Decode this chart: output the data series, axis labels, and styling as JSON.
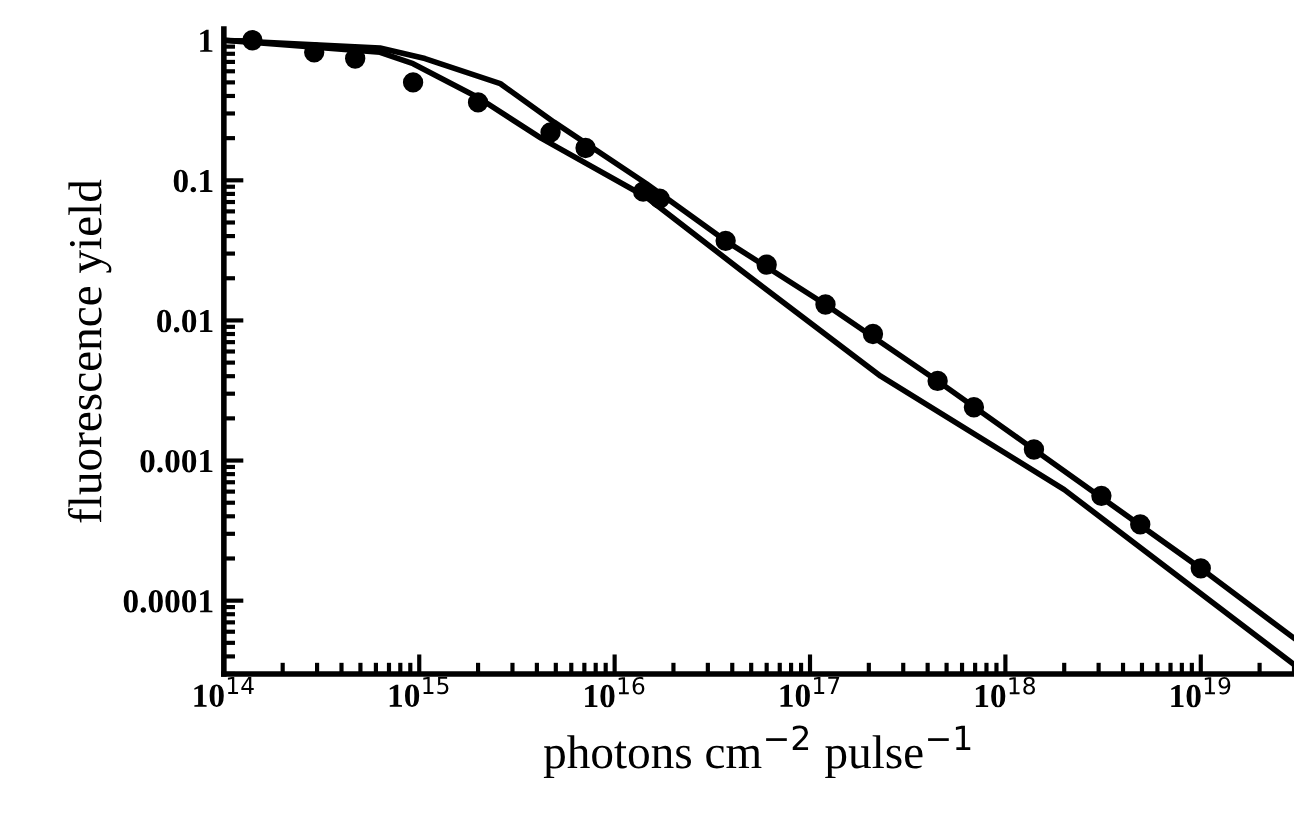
{
  "chart_data": {
    "type": "scatter",
    "xlabel": "photons cm$^{−2}$ pulse$^{−1}$",
    "ylabel": "fluorescence yield",
    "log": "xy",
    "xlim": [
      100000000000000.0,
      3e+19
    ],
    "ylim": [
      3e-05,
      1.2
    ],
    "xticks": [
      {
        "value": 100000000000000.0,
        "label": "10$^{14}$"
      },
      {
        "value": 1000000000000000.0,
        "label": "10$^{15}$"
      },
      {
        "value": 1e+16,
        "label": "10$^{16}$"
      },
      {
        "value": 1e+17,
        "label": "10$^{17}$"
      },
      {
        "value": 1e+18,
        "label": "10$^{18}$"
      },
      {
        "value": 1e+19,
        "label": "10$^{19}$"
      }
    ],
    "yticks": [
      0.0001,
      0.001,
      0.01,
      0.1,
      1
    ],
    "series": [
      {
        "marker": "circle",
        "color": "#000000",
        "x": [
          140000000000000.0,
          290000000000000.0,
          470000000000000.0,
          930000000000000.0,
          2000000000000000.0,
          4700000000000000.0,
          7100000000000000.0,
          1.4e+16,
          1.7e+16,
          3.7e+16,
          6e+16,
          1.2e+17,
          2.1e+17,
          4.5e+17,
          6.9e+17,
          1.4e+18,
          3.1e+18,
          4.9e+18,
          1e+19
        ],
        "values": [
          1.0,
          0.82,
          0.74,
          0.5,
          0.36,
          0.22,
          0.17,
          0.083,
          0.074,
          0.037,
          0.025,
          0.013,
          0.008,
          0.0037,
          0.0024,
          0.0012,
          0.00056,
          0.00035,
          0.00017
        ]
      },
      {
        "type": "line",
        "marker": "none",
        "color": "#000000",
        "x": [
          100000000000000.0,
          630000000000000.0,
          1070000000000000.0,
          2600000000000000.0,
          4900000000000000.0,
          1.45e+16,
          3.7e+16,
          1.2e+17,
          4.5e+17,
          1.4e+18,
          1e+19,
          3e+19
        ],
        "values": [
          1.0,
          0.88,
          0.74,
          0.49,
          0.26,
          0.095,
          0.037,
          0.013,
          0.0037,
          0.0012,
          0.00017,
          5.4e-05
        ]
      },
      {
        "type": "line",
        "marker": "none",
        "color": "#000000",
        "x": [
          100000000000000.0,
          630000000000000.0,
          930000000000000.0,
          2000000000000000.0,
          4200000000000000.0,
          1.45e+16,
          4.4e+16,
          2.3e+17,
          2e+18,
          3e+19
        ],
        "values": [
          1.0,
          0.82,
          0.68,
          0.39,
          0.2,
          0.076,
          0.023,
          0.004,
          0.00062,
          3.5e-05
        ]
      }
    ]
  }
}
